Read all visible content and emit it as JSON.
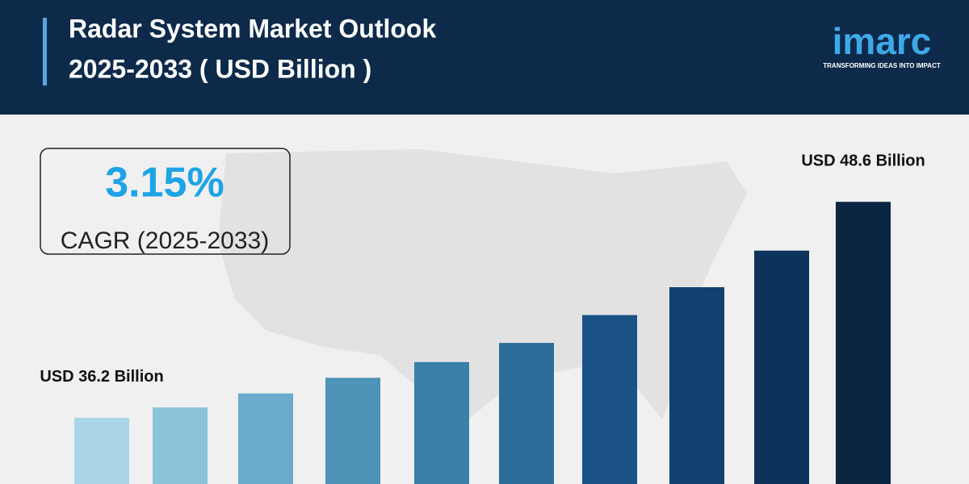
{
  "chart_data": {
    "type": "bar",
    "title": [
      "Radar System Market Outlook",
      "2025-2033 ( USD Billion )"
    ],
    "cagr_value": "3.15%",
    "cagr_label": "CAGR (2025-2033)",
    "categories": [
      null,
      null,
      null,
      null,
      null,
      null,
      null,
      null,
      null,
      null
    ],
    "values": [
      36.2,
      36.8,
      37.6,
      38.5,
      39.4,
      40.5,
      42.1,
      43.7,
      45.8,
      48.6
    ],
    "value_labels": [
      "USD 36.2 Billion",
      null,
      null,
      null,
      null,
      null,
      null,
      null,
      null,
      "USD 48.6 Billion"
    ],
    "colors": [
      "#a9d5e6",
      "#8dc3da",
      "#6aaacb",
      "#4e93b8",
      "#3a80a8",
      "#2d6c98",
      "#1a5285",
      "#12406f",
      "#0e335b",
      "#0b2643"
    ],
    "ylim": [
      32.4,
      50
    ]
  },
  "logo": {
    "name": "imarc",
    "tagline": "TRANSFORMING IDEAS INTO IMPACT"
  }
}
